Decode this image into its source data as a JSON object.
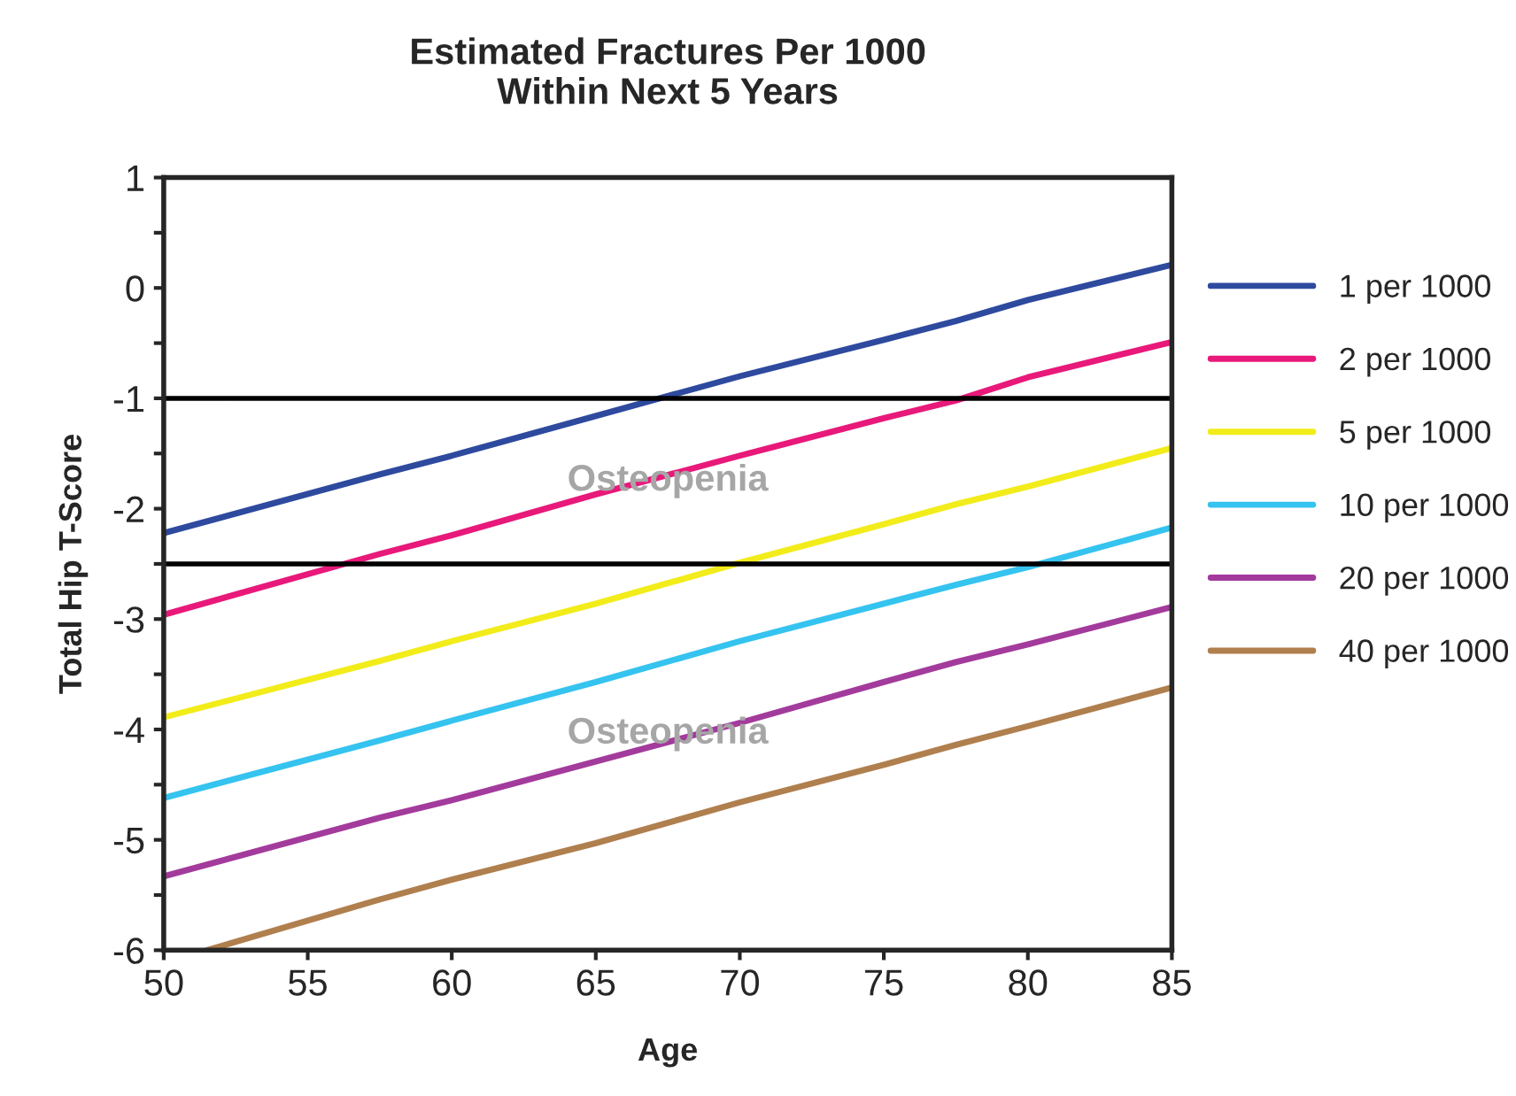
{
  "chart_data": {
    "type": "line",
    "title": "Estimated Fractures Per 1000\nWithin Next 5 Years",
    "xlabel": "Age",
    "ylabel": "Total Hip T-Score",
    "xlim": [
      50,
      85
    ],
    "xticks": [
      50,
      55,
      60,
      65,
      70,
      75,
      80,
      85
    ],
    "ylim": [
      -6,
      1
    ],
    "yticks": [
      -6,
      {
        "value": -5.5,
        "label": null
      },
      -5,
      {
        "value": -4.5,
        "label": null
      },
      -4,
      {
        "value": -3.5,
        "label": null
      },
      -3,
      {
        "value": -2.5,
        "label": null
      },
      -2,
      {
        "value": -1.5,
        "label": null
      },
      -1,
      {
        "value": -0.5,
        "label": null
      },
      0,
      {
        "value": 0.5,
        "label": null
      },
      1
    ],
    "grid": false,
    "legend": "right",
    "marker": "none",
    "line_style": "solid",
    "x": [
      50,
      57.5,
      60,
      65,
      70,
      75,
      77.5,
      80,
      85
    ],
    "series": [
      {
        "name": "1 per 1000",
        "color": "#2e4a9e",
        "values": [
          -2.22,
          -1.69,
          -1.52,
          -1.16,
          -0.8,
          -0.47,
          -0.3,
          -0.11,
          0.21
        ]
      },
      {
        "name": "2 per 1000",
        "color": "#e8197a",
        "values": [
          -2.96,
          -2.41,
          -2.24,
          -1.87,
          -1.52,
          -1.18,
          -1.02,
          -0.81,
          -0.49
        ]
      },
      {
        "name": "5 per 1000",
        "color": "#f2ec1a",
        "values": [
          -3.89,
          -3.38,
          -3.2,
          -2.86,
          -2.49,
          -2.14,
          -1.96,
          -1.8,
          -1.45
        ]
      },
      {
        "name": "10 per 1000",
        "color": "#35c3ef",
        "values": [
          -4.62,
          -4.1,
          -3.92,
          -3.57,
          -3.2,
          -2.86,
          -2.69,
          -2.53,
          -2.17
        ]
      },
      {
        "name": "20 per 1000",
        "color": "#a33b9c",
        "values": [
          -5.33,
          -4.8,
          -4.64,
          -4.29,
          -3.94,
          -3.57,
          -3.39,
          -3.23,
          -2.89
        ]
      },
      {
        "name": "40 per 1000",
        "color": "#b07f4e",
        "x": [
          51.5,
          57.5,
          60,
          65,
          70,
          75,
          77.5,
          80,
          85
        ],
        "values": [
          -6,
          -5.54,
          -5.36,
          -5.03,
          -4.66,
          -4.32,
          -4.14,
          -3.97,
          -3.62
        ]
      }
    ],
    "ref_lines": [
      {
        "axis": "y",
        "value": -1,
        "color": "#000000"
      },
      {
        "axis": "y",
        "value": -2.5,
        "color": "#000000"
      }
    ],
    "annotations": [
      "Osteopenia",
      "Osteopenia"
    ]
  }
}
